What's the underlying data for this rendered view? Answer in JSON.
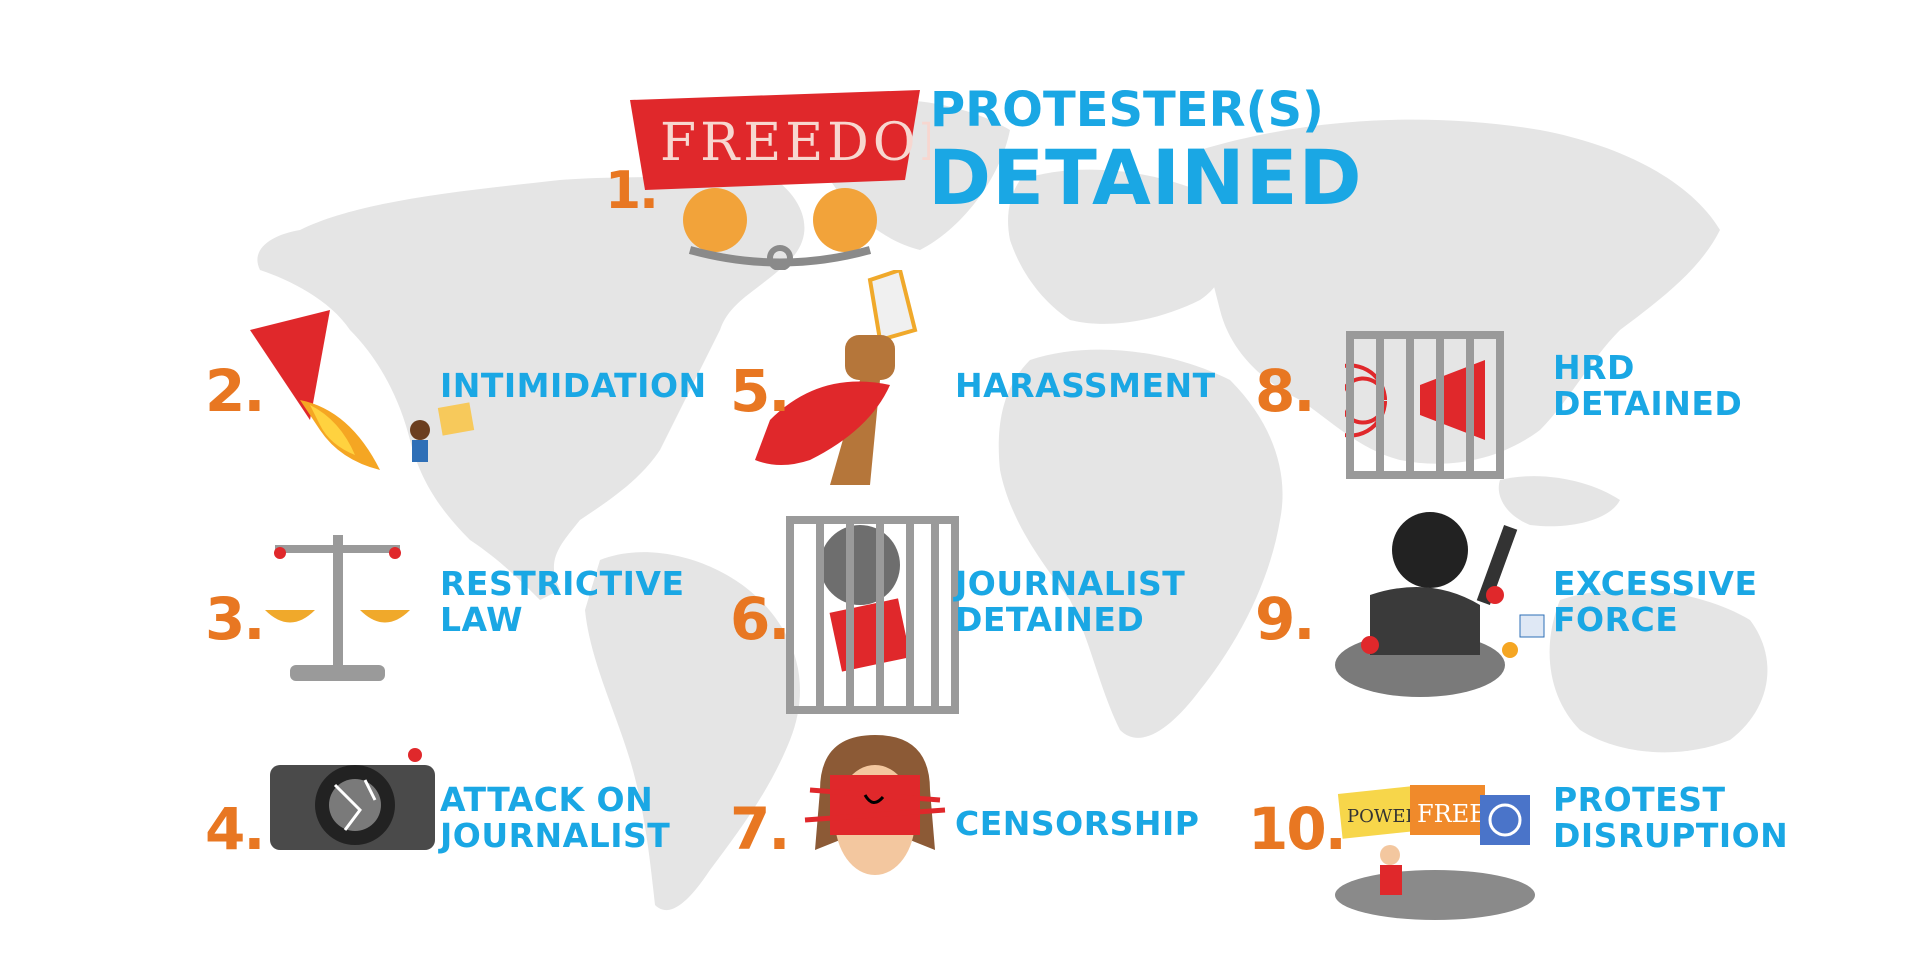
{
  "header": {
    "number": "1.",
    "title_line1": "PROTESTER(S)",
    "title_line2": "DETAINED",
    "banner_text": "FREEDOM"
  },
  "items": [
    {
      "number": "2.",
      "lines": [
        "INTIMIDATION"
      ],
      "icon": "megaphone-fire-icon"
    },
    {
      "number": "3.",
      "lines": [
        "RESTRICTIVE",
        "LAW"
      ],
      "icon": "scales-icon"
    },
    {
      "number": "4.",
      "lines": [
        "ATTACK ON",
        "JOURNALIST"
      ],
      "icon": "broken-camera-icon"
    },
    {
      "number": "5.",
      "lines": [
        "HARASSMENT"
      ],
      "icon": "grabbed-fist-icon"
    },
    {
      "number": "6.",
      "lines": [
        "JOURNALIST",
        "DETAINED"
      ],
      "icon": "caged-journalist-icon"
    },
    {
      "number": "7.",
      "lines": [
        "CENSORSHIP"
      ],
      "icon": "gagged-person-icon"
    },
    {
      "number": "8.",
      "lines": [
        "HRD",
        "DETAINED"
      ],
      "icon": "caged-megaphone-icon"
    },
    {
      "number": "9.",
      "lines": [
        "EXCESSIVE",
        "FORCE"
      ],
      "icon": "riot-police-icon"
    },
    {
      "number": "10.",
      "lines": [
        "PROTEST",
        "DISRUPTION"
      ],
      "icon": "protest-signs-icon"
    }
  ],
  "signs": [
    "POWER",
    "FREE!"
  ],
  "colors": {
    "accent_blue": "#1aa7e4",
    "number_orange": "#e87722",
    "map_grey": "#e6e6e6",
    "banner_red": "#e0282b"
  }
}
